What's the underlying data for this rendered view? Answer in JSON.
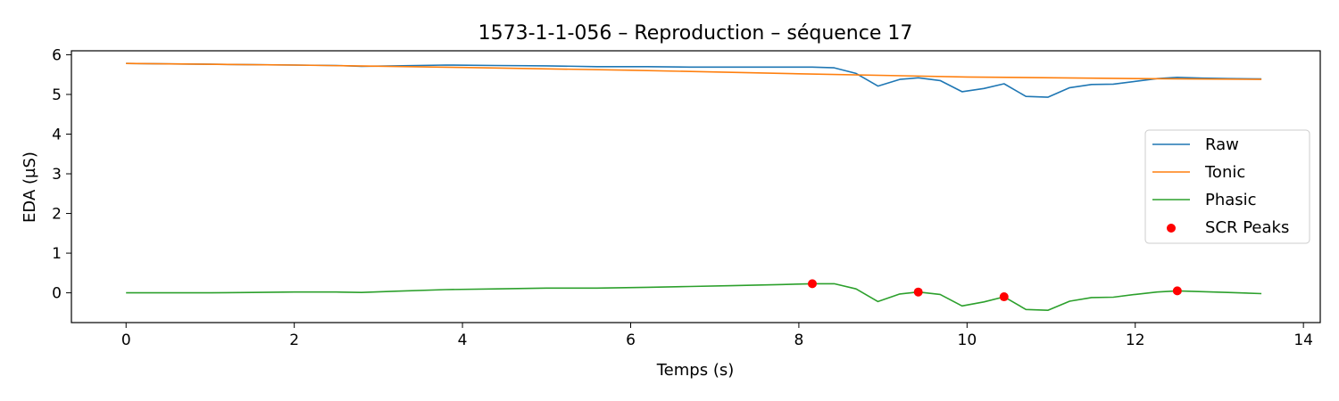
{
  "chart_data": {
    "type": "line",
    "title": "1573-1-1-056 – Reproduction – séquence 17",
    "xlabel": "Temps (s)",
    "ylabel": "EDA (µS)",
    "xlim": [
      -0.65,
      14.2
    ],
    "ylim": [
      -0.75,
      6.1
    ],
    "xticks": [
      0,
      2,
      4,
      6,
      8,
      10,
      12,
      14
    ],
    "yticks": [
      0,
      1,
      2,
      3,
      4,
      5,
      6
    ],
    "grid": false,
    "legend_position": "center-right",
    "series": [
      {
        "name": "Raw",
        "color": "#1f77b4",
        "x": [
          0,
          0.5,
          1.0,
          1.5,
          2.0,
          2.5,
          2.8,
          3.2,
          3.8,
          4.4,
          5.0,
          5.6,
          6.2,
          6.7,
          7.2,
          7.8,
          8.16,
          8.42,
          8.68,
          8.94,
          9.2,
          9.42,
          9.68,
          9.94,
          10.2,
          10.44,
          10.7,
          10.96,
          11.22,
          11.48,
          11.74,
          12.0,
          12.26,
          12.5,
          12.8,
          13.1,
          13.5
        ],
        "values": [
          5.78,
          5.77,
          5.76,
          5.75,
          5.74,
          5.73,
          5.71,
          5.72,
          5.74,
          5.73,
          5.72,
          5.7,
          5.7,
          5.69,
          5.69,
          5.69,
          5.69,
          5.67,
          5.53,
          5.21,
          5.38,
          5.42,
          5.35,
          5.07,
          5.15,
          5.27,
          4.95,
          4.93,
          5.17,
          5.25,
          5.26,
          5.33,
          5.4,
          5.43,
          5.41,
          5.4,
          5.39
        ]
      },
      {
        "name": "Tonic",
        "color": "#ff7f0e",
        "x": [
          0,
          2,
          4,
          6,
          8,
          10,
          12,
          13.5
        ],
        "values": [
          5.78,
          5.74,
          5.68,
          5.61,
          5.52,
          5.44,
          5.4,
          5.38
        ]
      },
      {
        "name": "Phasic",
        "color": "#2ca02c",
        "x": [
          0,
          0.5,
          1.0,
          1.5,
          2.0,
          2.5,
          2.8,
          3.2,
          3.8,
          4.4,
          5.0,
          5.6,
          6.2,
          6.7,
          7.2,
          7.8,
          8.16,
          8.42,
          8.68,
          8.94,
          9.2,
          9.42,
          9.68,
          9.94,
          10.2,
          10.44,
          10.7,
          10.96,
          11.22,
          11.48,
          11.74,
          12.0,
          12.26,
          12.5,
          12.8,
          13.1,
          13.5
        ],
        "values": [
          0.0,
          0.0,
          0.0,
          0.01,
          0.02,
          0.02,
          0.01,
          0.04,
          0.08,
          0.1,
          0.12,
          0.12,
          0.14,
          0.16,
          0.18,
          0.21,
          0.23,
          0.23,
          0.1,
          -0.22,
          -0.03,
          0.02,
          -0.04,
          -0.33,
          -0.23,
          -0.1,
          -0.42,
          -0.44,
          -0.21,
          -0.12,
          -0.11,
          -0.04,
          0.02,
          0.05,
          0.03,
          0.01,
          -0.02
        ]
      },
      {
        "name": "SCR Peaks",
        "color": "#ff0000",
        "marker": "dot",
        "x": [
          8.16,
          9.42,
          10.44,
          12.5
        ],
        "values": [
          0.23,
          0.02,
          -0.1,
          0.05
        ]
      }
    ]
  }
}
